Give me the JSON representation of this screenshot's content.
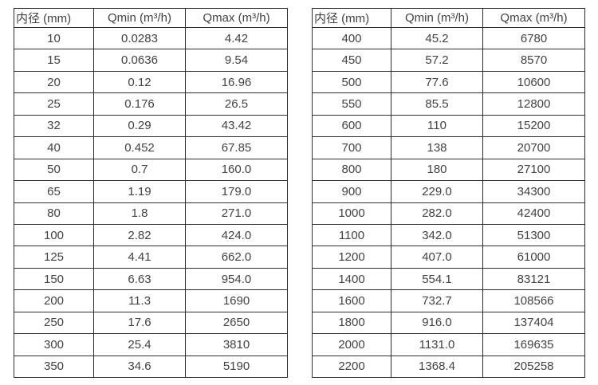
{
  "colors": {
    "background": "#ffffff",
    "border": "#2f2f2f",
    "text": "#424242"
  },
  "tables": [
    {
      "name": "small-diameter-flow-table",
      "headers": {
        "diameter": "内径 (mm)",
        "qmin": "Qmin (m³/h)",
        "qmax": "Qmax (m³/h)"
      },
      "rows": [
        [
          "10",
          "0.0283",
          "4.42"
        ],
        [
          "15",
          "0.0636",
          "9.54"
        ],
        [
          "20",
          "0.12",
          "16.96"
        ],
        [
          "25",
          "0.176",
          "26.5"
        ],
        [
          "32",
          "0.29",
          "43.42"
        ],
        [
          "40",
          "0.452",
          "67.85"
        ],
        [
          "50",
          "0.7",
          "160.0"
        ],
        [
          "65",
          "1.19",
          "179.0"
        ],
        [
          "80",
          "1.8",
          "271.0"
        ],
        [
          "100",
          "2.82",
          "424.0"
        ],
        [
          "125",
          "4.41",
          "662.0"
        ],
        [
          "150",
          "6.63",
          "954.0"
        ],
        [
          "200",
          "11.3",
          "1690"
        ],
        [
          "250",
          "17.6",
          "2650"
        ],
        [
          "300",
          "25.4",
          "3810"
        ],
        [
          "350",
          "34.6",
          "5190"
        ]
      ]
    },
    {
      "name": "large-diameter-flow-table",
      "headers": {
        "diameter": "内径 (mm)",
        "qmin": "Qmin (m³/h)",
        "qmax": "Qmax (m³/h)"
      },
      "rows": [
        [
          "400",
          "45.2",
          "6780"
        ],
        [
          "450",
          "57.2",
          "8570"
        ],
        [
          "500",
          "77.6",
          "10600"
        ],
        [
          "550",
          "85.5",
          "12800"
        ],
        [
          "600",
          "110",
          "15200"
        ],
        [
          "700",
          "138",
          "20700"
        ],
        [
          "800",
          "180",
          "27100"
        ],
        [
          "900",
          "229.0",
          "34300"
        ],
        [
          "1000",
          "282.0",
          "42400"
        ],
        [
          "1100",
          "342.0",
          "51300"
        ],
        [
          "1200",
          "407.0",
          "61000"
        ],
        [
          "1400",
          "554.1",
          "83121"
        ],
        [
          "1600",
          "732.7",
          "108566"
        ],
        [
          "1800",
          "916.0",
          "137404"
        ],
        [
          "2000",
          "1131.0",
          "169635"
        ],
        [
          "2200",
          "1368.4",
          "205258"
        ]
      ]
    }
  ]
}
